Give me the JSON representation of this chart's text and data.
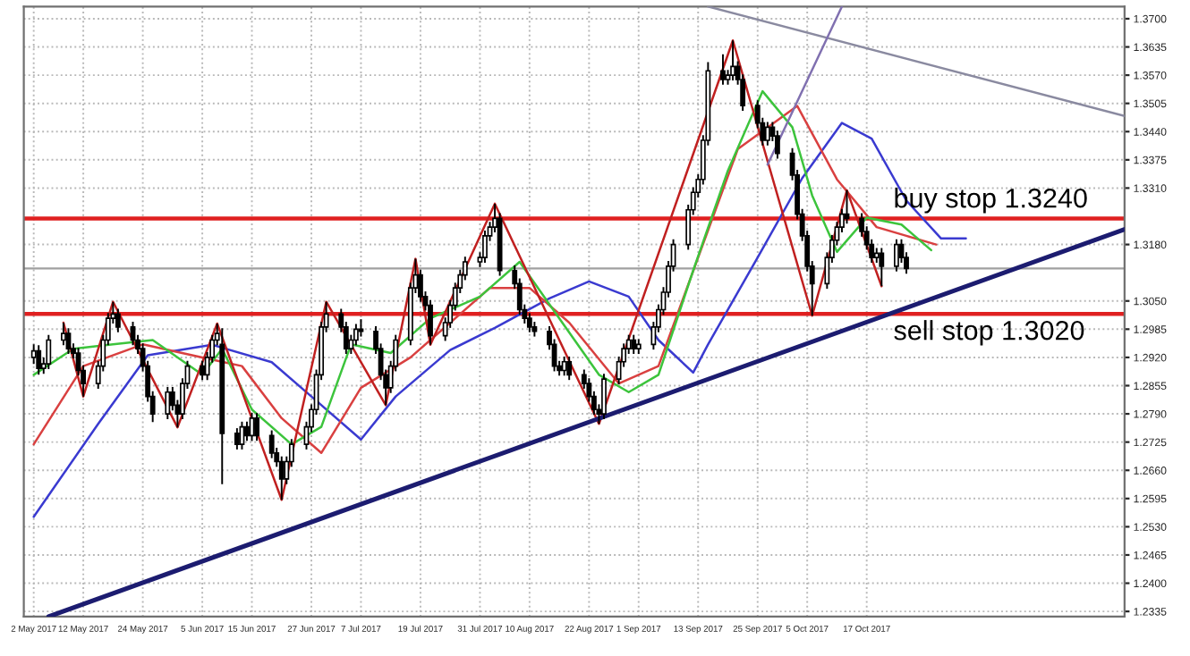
{
  "chart_data": {
    "type": "candlestick",
    "x": [
      "2017-05-02",
      "2017-05-03",
      "2017-05-04",
      "2017-05-05",
      "2017-05-08",
      "2017-05-09",
      "2017-05-10",
      "2017-05-11",
      "2017-05-12",
      "2017-05-15",
      "2017-05-16",
      "2017-05-17",
      "2017-05-18",
      "2017-05-19",
      "2017-05-22",
      "2017-05-23",
      "2017-05-24",
      "2017-05-25",
      "2017-05-26",
      "2017-05-29",
      "2017-05-30",
      "2017-05-31",
      "2017-06-01",
      "2017-06-02",
      "2017-06-05",
      "2017-06-06",
      "2017-06-07",
      "2017-06-08",
      "2017-06-09",
      "2017-06-12",
      "2017-06-13",
      "2017-06-14",
      "2017-06-15",
      "2017-06-16",
      "2017-06-19",
      "2017-06-20",
      "2017-06-21",
      "2017-06-22",
      "2017-06-23",
      "2017-06-26",
      "2017-06-27",
      "2017-06-28",
      "2017-06-29",
      "2017-06-30",
      "2017-07-03",
      "2017-07-04",
      "2017-07-05",
      "2017-07-06",
      "2017-07-07",
      "2017-07-10",
      "2017-07-11",
      "2017-07-12",
      "2017-07-13",
      "2017-07-14",
      "2017-07-17",
      "2017-07-18",
      "2017-07-19",
      "2017-07-20",
      "2017-07-21",
      "2017-07-24",
      "2017-07-25",
      "2017-07-26",
      "2017-07-27",
      "2017-07-28",
      "2017-07-31",
      "2017-08-01",
      "2017-08-02",
      "2017-08-03",
      "2017-08-04",
      "2017-08-07",
      "2017-08-08",
      "2017-08-09",
      "2017-08-10",
      "2017-08-11",
      "2017-08-14",
      "2017-08-15",
      "2017-08-16",
      "2017-08-17",
      "2017-08-18",
      "2017-08-21",
      "2017-08-22",
      "2017-08-23",
      "2017-08-24",
      "2017-08-25",
      "2017-08-28",
      "2017-08-29",
      "2017-08-30",
      "2017-08-31",
      "2017-09-01",
      "2017-09-04",
      "2017-09-05",
      "2017-09-06",
      "2017-09-07",
      "2017-09-08",
      "2017-09-11",
      "2017-09-12",
      "2017-09-13",
      "2017-09-14",
      "2017-09-15",
      "2017-09-18",
      "2017-09-19",
      "2017-09-20",
      "2017-09-21",
      "2017-09-22",
      "2017-09-25",
      "2017-09-26",
      "2017-09-27",
      "2017-09-28",
      "2017-09-29",
      "2017-10-02",
      "2017-10-03",
      "2017-10-04",
      "2017-10-05",
      "2017-10-06",
      "2017-10-09",
      "2017-10-10",
      "2017-10-11",
      "2017-10-12",
      "2017-10-13",
      "2017-10-16",
      "2017-10-17",
      "2017-10-18",
      "2017-10-19",
      "2017-10-20",
      "2017-10-23",
      "2017-10-24",
      "2017-10-25"
    ],
    "ohlc": [
      [
        1.292,
        1.295,
        1.2905,
        1.2935
      ],
      [
        1.2935,
        1.2948,
        1.288,
        1.2895
      ],
      [
        1.2895,
        1.292,
        1.2882,
        1.2905
      ],
      [
        1.2905,
        1.2972,
        1.2893,
        1.296
      ],
      [
        1.296,
        1.3,
        1.2948,
        1.2975
      ],
      [
        1.2975,
        1.2987,
        1.2928,
        1.294
      ],
      [
        1.294,
        1.2952,
        1.2918,
        1.293
      ],
      [
        1.293,
        1.2942,
        1.2878,
        1.289
      ],
      [
        1.289,
        1.2902,
        1.283,
        1.286
      ],
      [
        1.286,
        1.2912,
        1.2848,
        1.29
      ],
      [
        1.29,
        1.2972,
        1.2888,
        1.296
      ],
      [
        1.296,
        1.3022,
        1.2948,
        1.301
      ],
      [
        1.301,
        1.3048,
        1.2998,
        1.302
      ],
      [
        1.302,
        1.3032,
        1.2978,
        1.299
      ],
      [
        1.299,
        1.3002,
        1.2948,
        1.296
      ],
      [
        1.296,
        1.2972,
        1.2928,
        1.294
      ],
      [
        1.294,
        1.2952,
        1.2888,
        1.29
      ],
      [
        1.29,
        1.2912,
        1.2818,
        1.283
      ],
      [
        1.283,
        1.2842,
        1.2771,
        1.279
      ],
      [
        1.279,
        1.2852,
        1.2778,
        1.284
      ],
      [
        1.284,
        1.2852,
        1.2798,
        1.281
      ],
      [
        1.281,
        1.2822,
        1.2759,
        1.279
      ],
      [
        1.279,
        1.2872,
        1.2778,
        1.286
      ],
      [
        1.286,
        1.2912,
        1.2848,
        1.29
      ],
      [
        1.29,
        1.2912,
        1.2868,
        1.288
      ],
      [
        1.288,
        1.2932,
        1.2868,
        1.292
      ],
      [
        1.292,
        1.2972,
        1.2908,
        1.296
      ],
      [
        1.296,
        1.2998,
        1.2948,
        1.2975
      ],
      [
        1.295,
        1.2987,
        1.2628,
        1.2745
      ],
      [
        1.2745,
        1.2757,
        1.2708,
        1.272
      ],
      [
        1.272,
        1.2772,
        1.2708,
        1.276
      ],
      [
        1.276,
        1.2772,
        1.2728,
        1.274
      ],
      [
        1.274,
        1.2792,
        1.2728,
        1.278
      ],
      [
        1.278,
        1.2792,
        1.2728,
        1.274
      ],
      [
        1.274,
        1.2752,
        1.2688,
        1.27
      ],
      [
        1.27,
        1.2712,
        1.2668,
        1.268
      ],
      [
        1.268,
        1.2692,
        1.2592,
        1.264
      ],
      [
        1.264,
        1.2692,
        1.2628,
        1.268
      ],
      [
        1.268,
        1.2732,
        1.2668,
        1.272
      ],
      [
        1.272,
        1.2772,
        1.2708,
        1.276
      ],
      [
        1.276,
        1.2812,
        1.2748,
        1.28
      ],
      [
        1.28,
        1.2892,
        1.2788,
        1.288
      ],
      [
        1.288,
        1.3002,
        1.2868,
        1.299
      ],
      [
        1.299,
        1.3048,
        1.2978,
        1.302
      ],
      [
        1.302,
        1.3032,
        1.2978,
        1.299
      ],
      [
        1.299,
        1.3002,
        1.2928,
        1.294
      ],
      [
        1.294,
        1.2972,
        1.2928,
        1.296
      ],
      [
        1.296,
        1.2997,
        1.2948,
        1.2985
      ],
      [
        1.2985,
        1.3008,
        1.2968,
        1.298
      ],
      [
        1.298,
        1.2992,
        1.2928,
        1.294
      ],
      [
        1.294,
        1.2952,
        1.2868,
        1.288
      ],
      [
        1.288,
        1.2892,
        1.281,
        1.285
      ],
      [
        1.285,
        1.2912,
        1.2838,
        1.29
      ],
      [
        1.29,
        1.2972,
        1.2888,
        1.296
      ],
      [
        1.296,
        1.3092,
        1.2948,
        1.308
      ],
      [
        1.308,
        1.3147,
        1.3068,
        1.311
      ],
      [
        1.311,
        1.3122,
        1.3048,
        1.306
      ],
      [
        1.306,
        1.3072,
        1.3028,
        1.304
      ],
      [
        1.304,
        1.3052,
        1.2949,
        1.297
      ],
      [
        1.297,
        1.3012,
        1.2958,
        1.3
      ],
      [
        1.3,
        1.3052,
        1.2988,
        1.304
      ],
      [
        1.304,
        1.3092,
        1.3028,
        1.308
      ],
      [
        1.308,
        1.3122,
        1.3068,
        1.311
      ],
      [
        1.311,
        1.3152,
        1.3098,
        1.314
      ],
      [
        1.314,
        1.3162,
        1.3128,
        1.315
      ],
      [
        1.315,
        1.3212,
        1.3138,
        1.32
      ],
      [
        1.32,
        1.3232,
        1.3188,
        1.322
      ],
      [
        1.322,
        1.3274,
        1.3208,
        1.324
      ],
      [
        1.324,
        1.3252,
        1.3108,
        1.312
      ],
      [
        1.312,
        1.3132,
        1.3078,
        1.309
      ],
      [
        1.309,
        1.3102,
        1.3018,
        1.303
      ],
      [
        1.303,
        1.3042,
        1.2998,
        1.301
      ],
      [
        1.301,
        1.3022,
        1.2978,
        1.299
      ],
      [
        1.299,
        1.3002,
        1.2968,
        1.298
      ],
      [
        1.298,
        1.2992,
        1.2938,
        1.295
      ],
      [
        1.295,
        1.2962,
        1.2888,
        1.29
      ],
      [
        1.29,
        1.2912,
        1.2878,
        1.289
      ],
      [
        1.289,
        1.2922,
        1.2878,
        1.291
      ],
      [
        1.291,
        1.2922,
        1.2868,
        1.288
      ],
      [
        1.288,
        1.2892,
        1.2848,
        1.286
      ],
      [
        1.286,
        1.2872,
        1.2818,
        1.283
      ],
      [
        1.283,
        1.2842,
        1.2788,
        1.28
      ],
      [
        1.28,
        1.2812,
        1.2767,
        1.279
      ],
      [
        1.279,
        1.2882,
        1.2778,
        1.287
      ],
      [
        1.287,
        1.2922,
        1.2858,
        1.291
      ],
      [
        1.291,
        1.2952,
        1.2898,
        1.294
      ],
      [
        1.294,
        1.2972,
        1.2928,
        1.296
      ],
      [
        1.296,
        1.2972,
        1.2928,
        1.294
      ],
      [
        1.294,
        1.2962,
        1.2928,
        1.295
      ],
      [
        1.295,
        1.3002,
        1.2938,
        1.299
      ],
      [
        1.299,
        1.3042,
        1.2978,
        1.303
      ],
      [
        1.303,
        1.3082,
        1.3018,
        1.307
      ],
      [
        1.307,
        1.3142,
        1.3058,
        1.313
      ],
      [
        1.313,
        1.3192,
        1.3118,
        1.318
      ],
      [
        1.318,
        1.3272,
        1.3168,
        1.326
      ],
      [
        1.326,
        1.3312,
        1.3248,
        1.33
      ],
      [
        1.33,
        1.3342,
        1.3288,
        1.333
      ],
      [
        1.333,
        1.3432,
        1.3318,
        1.342
      ],
      [
        1.342,
        1.36,
        1.3408,
        1.358
      ],
      [
        1.358,
        1.3618,
        1.3548,
        1.356
      ],
      [
        1.356,
        1.3582,
        1.3548,
        1.357
      ],
      [
        1.357,
        1.365,
        1.3558,
        1.359
      ],
      [
        1.359,
        1.3602,
        1.3548,
        1.356
      ],
      [
        1.356,
        1.3572,
        1.3488,
        1.35
      ],
      [
        1.35,
        1.3512,
        1.3448,
        1.346
      ],
      [
        1.346,
        1.3472,
        1.3408,
        1.342
      ],
      [
        1.342,
        1.3462,
        1.3408,
        1.345
      ],
      [
        1.345,
        1.3462,
        1.3418,
        1.343
      ],
      [
        1.343,
        1.3442,
        1.3378,
        1.339
      ],
      [
        1.339,
        1.3402,
        1.3328,
        1.334
      ],
      [
        1.334,
        1.3352,
        1.3238,
        1.325
      ],
      [
        1.325,
        1.3262,
        1.3188,
        1.32
      ],
      [
        1.32,
        1.3212,
        1.3118,
        1.313
      ],
      [
        1.313,
        1.3142,
        1.3016,
        1.309
      ],
      [
        1.309,
        1.3162,
        1.3078,
        1.315
      ],
      [
        1.315,
        1.3202,
        1.3138,
        1.319
      ],
      [
        1.319,
        1.3232,
        1.3178,
        1.322
      ],
      [
        1.322,
        1.3262,
        1.3208,
        1.325
      ],
      [
        1.325,
        1.3305,
        1.3228,
        1.324
      ],
      [
        1.324,
        1.3252,
        1.3198,
        1.321
      ],
      [
        1.321,
        1.3222,
        1.3168,
        1.318
      ],
      [
        1.318,
        1.3192,
        1.3138,
        1.315
      ],
      [
        1.315,
        1.3172,
        1.3138,
        1.316
      ],
      [
        1.316,
        1.3172,
        1.3084,
        1.313
      ],
      [
        1.313,
        1.3192,
        1.3118,
        1.318
      ],
      [
        1.318,
        1.3192,
        1.3138,
        1.315
      ],
      [
        1.315,
        1.3162,
        1.3113,
        1.3125
      ]
    ],
    "series": [
      {
        "type": "line",
        "color": "#3a3ad0",
        "x": [
          "2017-05-02",
          "2017-05-15",
          "2017-05-25",
          "2017-06-07",
          "2017-06-19",
          "2017-06-27",
          "2017-07-07",
          "2017-07-14",
          "2017-07-25",
          "2017-08-03",
          "2017-08-14",
          "2017-08-22",
          "2017-08-30",
          "2017-09-05",
          "2017-09-12",
          "2017-09-15",
          "2017-09-25",
          "2017-10-04",
          "2017-10-12",
          "2017-10-18",
          "2017-10-25",
          "2017-11-01",
          "2017-11-06"
        ],
        "values": [
          1.2553,
          1.2767,
          1.2925,
          1.2949,
          1.2909,
          1.283,
          1.2731,
          1.283,
          1.2937,
          1.2988,
          1.3056,
          1.3095,
          1.306,
          1.296,
          1.2885,
          1.295,
          1.315,
          1.3333,
          1.346,
          1.3424,
          1.3281,
          1.3194,
          1.3194
        ]
      },
      {
        "type": "line",
        "color": "#d94040",
        "x": [
          "2017-05-02",
          "2017-05-12",
          "2017-05-24",
          "2017-06-05",
          "2017-06-13",
          "2017-06-21",
          "2017-06-29",
          "2017-07-07",
          "2017-07-17",
          "2017-07-25",
          "2017-08-02",
          "2017-08-10",
          "2017-08-18",
          "2017-08-28",
          "2017-09-05",
          "2017-09-13",
          "2017-09-21",
          "2017-10-03",
          "2017-10-11",
          "2017-10-19",
          "2017-10-25",
          "2017-10-31"
        ],
        "values": [
          1.272,
          1.29,
          1.295,
          1.292,
          1.29,
          1.278,
          1.27,
          1.285,
          1.292,
          1.3,
          1.308,
          1.308,
          1.3,
          1.286,
          1.29,
          1.315,
          1.34,
          1.3499,
          1.333,
          1.322,
          1.32,
          1.318
        ]
      },
      {
        "type": "line",
        "color": "#3cc43c",
        "x": [
          "2017-05-02",
          "2017-05-10",
          "2017-05-18",
          "2017-05-26",
          "2017-06-05",
          "2017-06-09",
          "2017-06-15",
          "2017-06-23",
          "2017-06-29",
          "2017-07-05",
          "2017-07-13",
          "2017-07-21",
          "2017-07-31",
          "2017-08-08",
          "2017-08-16",
          "2017-08-24",
          "2017-08-30",
          "2017-09-05",
          "2017-09-12",
          "2017-09-19",
          "2017-09-26",
          "2017-10-02",
          "2017-10-06",
          "2017-10-11",
          "2017-10-17",
          "2017-10-24",
          "2017-10-30"
        ],
        "values": [
          1.288,
          1.294,
          1.295,
          1.296,
          1.288,
          1.294,
          1.28,
          1.272,
          1.276,
          1.295,
          1.293,
          1.301,
          1.306,
          1.314,
          1.301,
          1.288,
          1.284,
          1.288,
          1.312,
          1.335,
          1.3533,
          1.345,
          1.3293,
          1.3163,
          1.3242,
          1.3226,
          1.3167
        ]
      },
      {
        "type": "line",
        "color": "#c02020",
        "x": [
          "2017-05-08",
          "2017-05-12",
          "2017-05-18",
          "2017-05-31",
          "2017-06-08",
          "2017-06-21",
          "2017-06-30",
          "2017-07-12",
          "2017-07-18",
          "2017-07-21",
          "2017-08-03",
          "2017-08-24",
          "2017-09-20",
          "2017-10-06",
          "2017-10-13",
          "2017-10-20"
        ],
        "values": [
          1.3,
          1.283,
          1.3048,
          1.2759,
          1.2998,
          1.2592,
          1.3048,
          1.281,
          1.3147,
          1.2949,
          1.3274,
          1.2767,
          1.365,
          1.3016,
          1.3305,
          1.3084
        ]
      },
      {
        "type": "line",
        "color": "#1c1c70",
        "x": [
          "2017-05-05",
          "2017-12-08"
        ],
        "values": [
          1.2323,
          1.3215
        ]
      },
      {
        "type": "line",
        "color": "#8a8aa0",
        "x": [
          "2017-09-15",
          "2017-12-08"
        ],
        "values": [
          1.3728,
          1.3476
        ]
      },
      {
        "type": "line",
        "color": "#8070b0",
        "x": [
          "2017-09-27",
          "2017-10-12"
        ],
        "values": [
          1.3364,
          1.3728
        ]
      }
    ],
    "xlim": [
      "2017-04-30",
      "2017-12-08"
    ],
    "xticks": [
      {
        "value": "2017-05-02",
        "label": "2 May 2017"
      },
      {
        "value": "2017-05-12",
        "label": "12 May 2017"
      },
      {
        "value": "2017-05-24",
        "label": "24 May 2017"
      },
      {
        "value": "2017-06-05",
        "label": "5 Jun 2017"
      },
      {
        "value": "2017-06-15",
        "label": "15 Jun 2017"
      },
      {
        "value": "2017-06-27",
        "label": "27 Jun 2017"
      },
      {
        "value": "2017-07-07",
        "label": "7 Jul 2017"
      },
      {
        "value": "2017-07-19",
        "label": "19 Jul 2017"
      },
      {
        "value": "2017-07-31",
        "label": "31 Jul 2017"
      },
      {
        "value": "2017-08-10",
        "label": "10 Aug 2017"
      },
      {
        "value": "2017-08-22",
        "label": "22 Aug 2017"
      },
      {
        "value": "2017-09-01",
        "label": "1 Sep 2017"
      },
      {
        "value": "2017-09-13",
        "label": "13 Sep 2017"
      },
      {
        "value": "2017-09-25",
        "label": "25 Sep 2017"
      },
      {
        "value": "2017-10-05",
        "label": "5 Oct 2017"
      },
      {
        "value": "2017-10-17",
        "label": "17 Oct 2017"
      }
    ],
    "ylim": [
      1.2323,
      1.3728
    ],
    "yticks": [
      1.2335,
      {
        "value": 1.24,
        "label": "1.2400"
      },
      1.2465,
      {
        "value": 1.253,
        "label": "1.2530"
      },
      1.2595,
      {
        "value": 1.266,
        "label": "1.2660"
      },
      1.2725,
      {
        "value": 1.279,
        "label": "1.2790"
      },
      1.2855,
      {
        "value": 1.292,
        "label": "1.2920"
      },
      1.2985,
      {
        "value": 1.305,
        "label": "1.3050"
      },
      {
        "value": 1.318,
        "label": "1.3180"
      },
      {
        "value": 1.331,
        "label": "1.3310"
      },
      1.3375,
      {
        "value": 1.344,
        "label": "1.3440"
      },
      1.3505,
      {
        "value": 1.357,
        "label": "1.3570"
      },
      1.3635,
      {
        "value": 1.37,
        "label": "1.3700"
      }
    ],
    "ref_lines": [
      {
        "axis": "y",
        "value": 1.324,
        "label": "buy stop 1.3240",
        "color": "#e02020"
      },
      {
        "axis": "y",
        "value": 1.302,
        "label": "sell stop 1.3020",
        "color": "#e02020"
      },
      {
        "axis": "y",
        "value": 1.3125,
        "color": "#a0a0a0"
      }
    ],
    "grid": true,
    "legend": false
  }
}
